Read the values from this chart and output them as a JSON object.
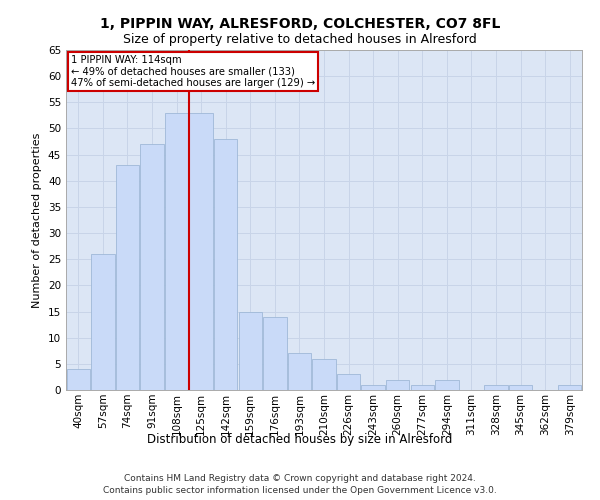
{
  "title1": "1, PIPPIN WAY, ALRESFORD, COLCHESTER, CO7 8FL",
  "title2": "Size of property relative to detached houses in Alresford",
  "xlabel": "Distribution of detached houses by size in Alresford",
  "ylabel": "Number of detached properties",
  "footer": "Contains HM Land Registry data © Crown copyright and database right 2024.\nContains public sector information licensed under the Open Government Licence v3.0.",
  "categories": [
    "40sqm",
    "57sqm",
    "74sqm",
    "91sqm",
    "108sqm",
    "125sqm",
    "142sqm",
    "159sqm",
    "176sqm",
    "193sqm",
    "210sqm",
    "226sqm",
    "243sqm",
    "260sqm",
    "277sqm",
    "294sqm",
    "311sqm",
    "328sqm",
    "345sqm",
    "362sqm",
    "379sqm"
  ],
  "values": [
    4,
    26,
    43,
    47,
    53,
    53,
    48,
    15,
    14,
    7,
    6,
    3,
    1,
    2,
    1,
    2,
    0,
    1,
    1,
    0,
    1
  ],
  "bar_color": "#c9daf8",
  "bar_edge_color": "#9fb8d8",
  "property_line_x": 4.5,
  "property_line_color": "#cc0000",
  "annotation_text": "1 PIPPIN WAY: 114sqm\n← 49% of detached houses are smaller (133)\n47% of semi-detached houses are larger (129) →",
  "annotation_box_color": "#ffffff",
  "annotation_box_edge": "#cc0000",
  "ylim": [
    0,
    65
  ],
  "yticks": [
    0,
    5,
    10,
    15,
    20,
    25,
    30,
    35,
    40,
    45,
    50,
    55,
    60,
    65
  ],
  "grid_color": "#c8d4e8",
  "bg_color": "#dce6f5",
  "title1_fontsize": 10,
  "title2_fontsize": 9,
  "xlabel_fontsize": 8.5,
  "ylabel_fontsize": 8,
  "tick_fontsize": 7.5,
  "footer_fontsize": 6.5
}
